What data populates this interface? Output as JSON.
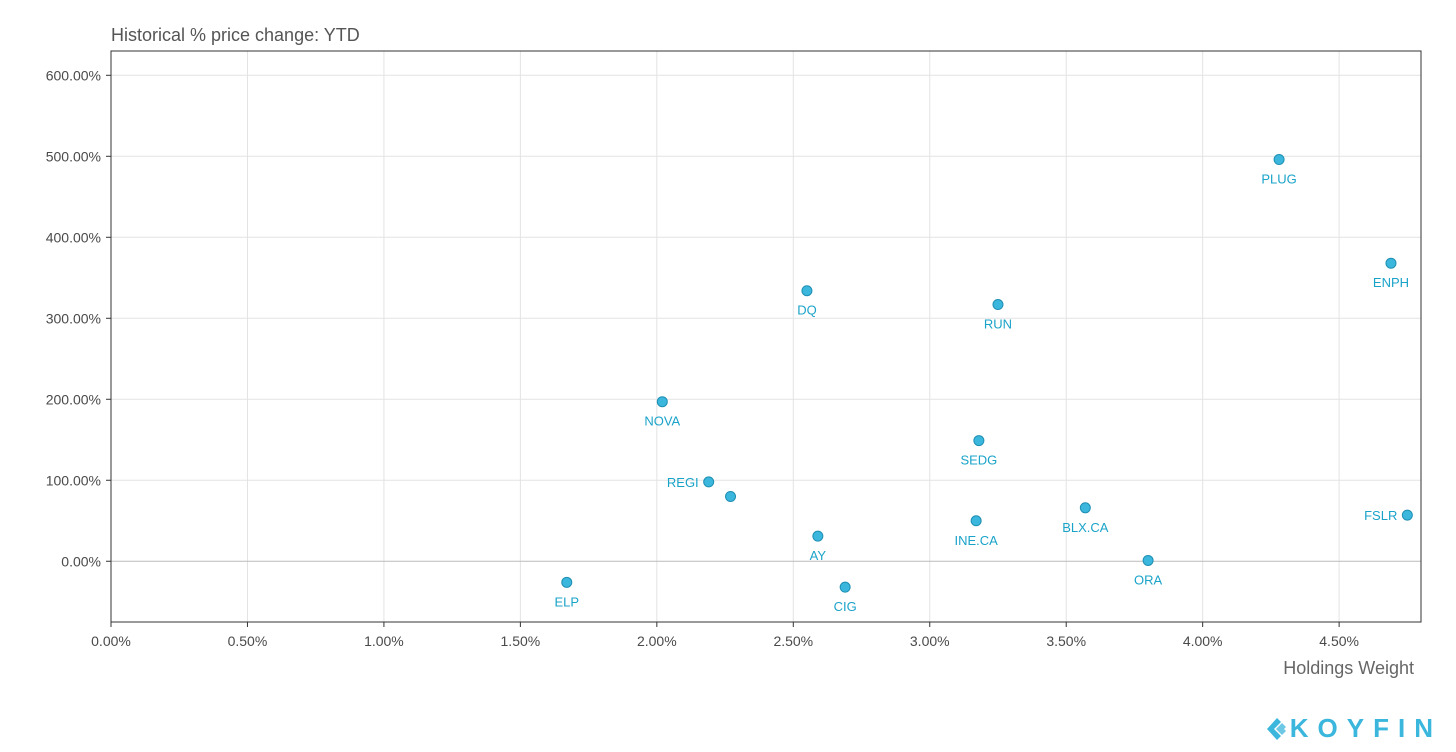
{
  "chart_data": {
    "type": "scatter",
    "title": "Historical % price change: YTD",
    "xlabel": "Holdings Weight",
    "ylabel": "",
    "xlim": [
      0,
      4.8
    ],
    "ylim": [
      -75,
      630
    ],
    "x_ticks": [
      "0.00%",
      "0.50%",
      "1.00%",
      "1.50%",
      "2.00%",
      "2.50%",
      "3.00%",
      "3.50%",
      "4.00%",
      "4.50%"
    ],
    "x_tick_values": [
      0,
      0.5,
      1.0,
      1.5,
      2.0,
      2.5,
      3.0,
      3.5,
      4.0,
      4.5
    ],
    "y_ticks": [
      "0.00%",
      "100.00%",
      "200.00%",
      "300.00%",
      "400.00%",
      "500.00%",
      "600.00%"
    ],
    "y_tick_values": [
      0,
      100,
      200,
      300,
      400,
      500,
      600
    ],
    "grid": true,
    "point_color": "#3bb6dc",
    "points": [
      {
        "label": "PLUG",
        "x": 4.28,
        "y": 496,
        "label_pos": "below"
      },
      {
        "label": "ENPH",
        "x": 4.69,
        "y": 368,
        "label_pos": "below"
      },
      {
        "label": "DQ",
        "x": 2.55,
        "y": 334,
        "label_pos": "below"
      },
      {
        "label": "RUN",
        "x": 3.25,
        "y": 317,
        "label_pos": "below"
      },
      {
        "label": "NOVA",
        "x": 2.02,
        "y": 197,
        "label_pos": "below"
      },
      {
        "label": "SEDG",
        "x": 3.18,
        "y": 149,
        "label_pos": "below"
      },
      {
        "label": "REGI",
        "x": 2.19,
        "y": 98,
        "label_pos": "left"
      },
      {
        "label": "",
        "x": 2.27,
        "y": 80,
        "label_pos": "none"
      },
      {
        "label": "BLX.CA",
        "x": 3.57,
        "y": 66,
        "label_pos": "below"
      },
      {
        "label": "FSLR",
        "x": 4.75,
        "y": 57,
        "label_pos": "left"
      },
      {
        "label": "INE.CA",
        "x": 3.17,
        "y": 50,
        "label_pos": "below"
      },
      {
        "label": "AY",
        "x": 2.59,
        "y": 31,
        "label_pos": "below"
      },
      {
        "label": "ORA",
        "x": 3.8,
        "y": 1,
        "label_pos": "below"
      },
      {
        "label": "ELP",
        "x": 1.67,
        "y": -26,
        "label_pos": "below"
      },
      {
        "label": "CIG",
        "x": 2.69,
        "y": -32,
        "label_pos": "below"
      }
    ]
  },
  "brand": {
    "name": "KOYFIN",
    "logo_icon": "koyfin-logo-icon"
  }
}
